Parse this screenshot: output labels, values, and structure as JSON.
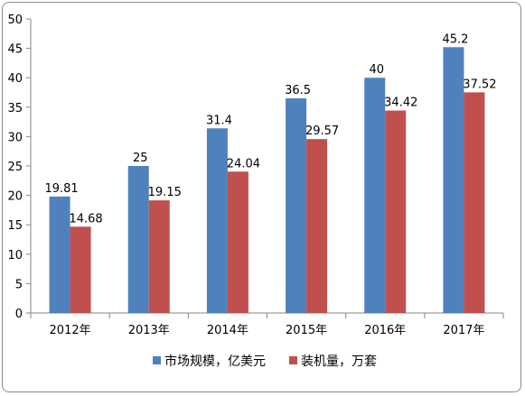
{
  "chart_data": {
    "type": "bar",
    "categories": [
      "2012年",
      "2013年",
      "2014年",
      "2015年",
      "2016年",
      "2017年"
    ],
    "series": [
      {
        "name": "市场规模，亿美元",
        "values": [
          19.81,
          25,
          31.4,
          36.5,
          40,
          45.2
        ],
        "labels": [
          "19.81",
          "25",
          "31.4",
          "36.5",
          "40",
          "45.2"
        ],
        "color": "#4f81bd"
      },
      {
        "name": "装机量，万套",
        "values": [
          14.68,
          19.15,
          24.04,
          29.57,
          34.42,
          37.52
        ],
        "labels": [
          "14.68",
          "19.15",
          "24.04",
          "29.57",
          "34.42",
          "37.52"
        ],
        "color": "#c0504d"
      }
    ],
    "yticks": [
      "0",
      "5",
      "10",
      "15",
      "20",
      "25",
      "30",
      "35",
      "40",
      "45",
      "50"
    ],
    "ylim": [
      0,
      50
    ],
    "grid": false,
    "legend": "bottom"
  }
}
